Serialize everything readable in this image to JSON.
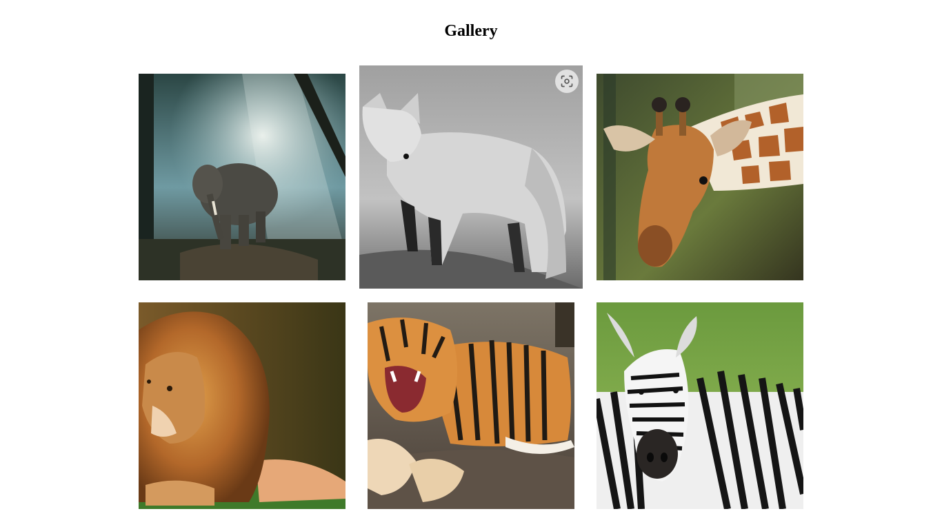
{
  "page": {
    "title": "Gallery"
  },
  "gallery": {
    "images": [
      {
        "subject": "elephant",
        "palette": [
          "#1f3a3c",
          "#9fc3c8",
          "#3e3a34"
        ]
      },
      {
        "subject": "fox",
        "palette": [
          "#aaaaaa",
          "#e8e8e8",
          "#3a3a3a"
        ]
      },
      {
        "subject": "giraffe",
        "palette": [
          "#5a6b3a",
          "#b5692a",
          "#f1e6d2"
        ]
      },
      {
        "subject": "lion",
        "palette": [
          "#5a4a22",
          "#c8843a",
          "#3a7a2a"
        ]
      },
      {
        "subject": "tiger",
        "palette": [
          "#7a7066",
          "#d8893a",
          "#2a2a2a"
        ]
      },
      {
        "subject": "zebra",
        "palette": [
          "#7aa84a",
          "#f4f4f4",
          "#151515"
        ]
      }
    ],
    "hover_action_icon": "visual-search-icon"
  }
}
